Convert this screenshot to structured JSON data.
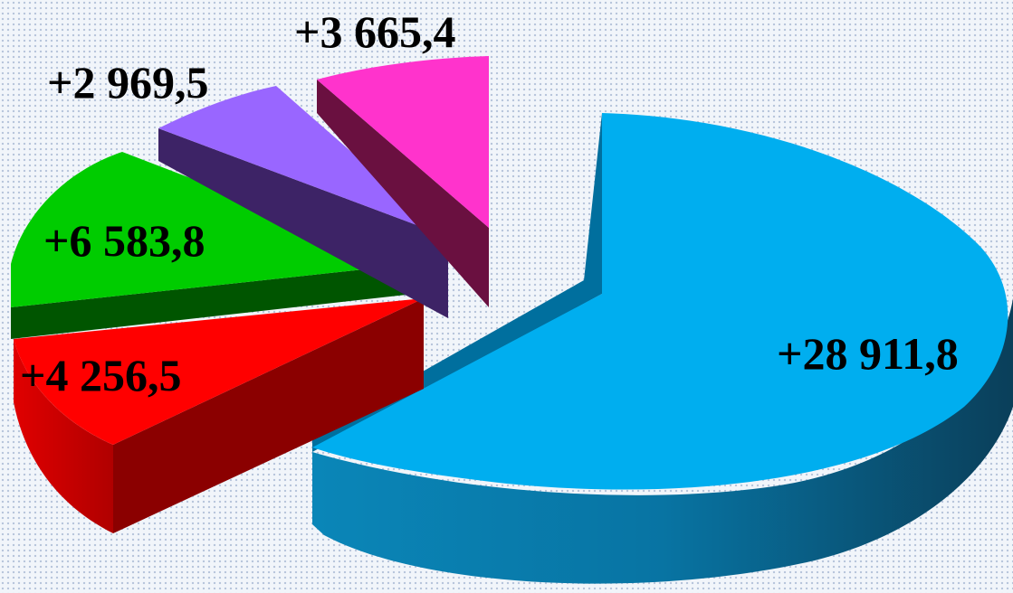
{
  "chart_data": {
    "type": "pie",
    "style": "3d-exploded",
    "title": "",
    "legend": "none",
    "slices": [
      {
        "label": "+28 911,8",
        "value": 28911.8,
        "color": "#00aeef"
      },
      {
        "label": "+4 256,5",
        "value": 4256.5,
        "color": "#ff0000"
      },
      {
        "label": "+6 583,8",
        "value": 6583.8,
        "color": "#00cc00"
      },
      {
        "label": "+2 969,5",
        "value": 2969.5,
        "color": "#9966ff"
      },
      {
        "label": "+3 665,4",
        "value": 3665.4,
        "color": "#ff33cc"
      }
    ]
  }
}
